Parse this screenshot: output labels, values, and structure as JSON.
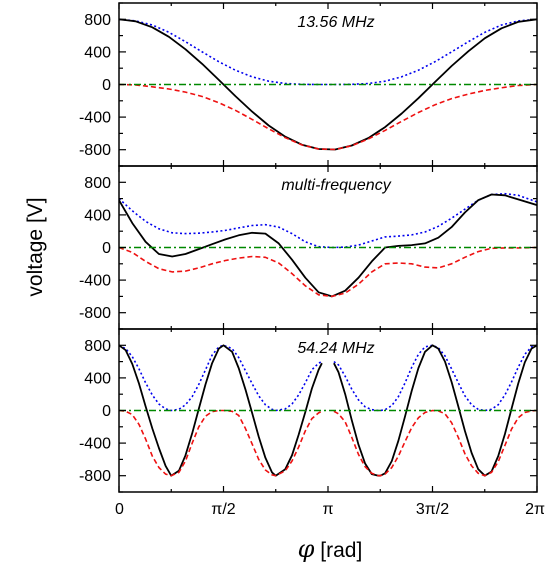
{
  "chart_data": {
    "type": "line",
    "ylabel": "voltage [V]",
    "xlabel": {
      "symbol": "φ",
      "unit": " [rad]"
    },
    "x_range": [
      0,
      6.283185
    ],
    "x_ticks": [
      {
        "value": 0,
        "label": "0"
      },
      {
        "value": 1.570796,
        "label": "π/2"
      },
      {
        "value": 3.141593,
        "label": "π"
      },
      {
        "value": 4.712389,
        "label": "3π/2"
      },
      {
        "value": 6.283185,
        "label": "2π"
      }
    ],
    "ylim": [
      -1000,
      1000
    ],
    "y_ticks": [
      800,
      400,
      0,
      -400,
      -800
    ],
    "series_style": {
      "s1": {
        "color": "#0000ee",
        "dash": "2,2.5",
        "width": 1.6
      },
      "s2": {
        "color": "#000000",
        "dash": "",
        "width": 1.8
      },
      "s3": {
        "color": "#ee1111",
        "dash": "5,3",
        "width": 1.6
      },
      "s4": {
        "color": "#008800",
        "dash": "7,3,2,3",
        "width": 1.6
      }
    },
    "panels": [
      {
        "title": "13.56 MHz",
        "series": [
          {
            "style": "s1",
            "x": [
              0,
              0.25,
              0.5,
              0.75,
              1.0,
              1.25,
              1.5,
              1.75,
              2.0,
              2.25,
              2.5,
              2.75,
              3.0,
              3.25,
              3.5,
              3.75,
              4.0,
              4.25,
              4.5,
              4.75,
              5.0,
              5.25,
              5.5,
              5.75,
              6.0,
              6.2832
            ],
            "y": [
              800,
              780,
              730,
              640,
              525,
              400,
              280,
              175,
              95,
              40,
              12,
              2,
              0,
              0,
              2,
              12,
              40,
              95,
              175,
              280,
              400,
              525,
              640,
              730,
              780,
              800
            ]
          },
          {
            "style": "s2",
            "x": [
              0,
              0.25,
              0.5,
              0.75,
              1.0,
              1.25,
              1.5,
              1.75,
              2.0,
              2.25,
              2.5,
              2.75,
              3.0,
              3.25,
              3.5,
              3.75,
              4.0,
              4.25,
              4.5,
              4.75,
              5.0,
              5.25,
              5.5,
              5.75,
              6.0,
              6.2832
            ],
            "y": [
              800,
              775,
              702,
              585,
              432,
              253,
              57,
              -142,
              -333,
              -503,
              -641,
              -739,
              -792,
              -798,
              -749,
              -656,
              -523,
              -356,
              -168,
              31,
              227,
              407,
              568,
              690,
              768,
              800
            ]
          },
          {
            "style": "s3",
            "x": [
              0,
              0.25,
              0.5,
              0.75,
              1.0,
              1.25,
              1.5,
              1.75,
              2.0,
              2.25,
              2.5,
              2.75,
              3.0,
              3.25,
              3.5,
              3.75,
              4.0,
              4.25,
              4.5,
              4.75,
              5.0,
              5.25,
              5.5,
              5.75,
              6.0,
              6.2832
            ],
            "y": [
              0,
              -5,
              -28,
              -55,
              -93,
              -147,
              -223,
              -317,
              -428,
              -543,
              -653,
              -741,
              -792,
              -798,
              -751,
              -668,
              -563,
              -451,
              -343,
              -249,
              -173,
              -118,
              -72,
              -40,
              -12,
              0
            ]
          },
          {
            "style": "s4",
            "x": [
              0,
              6.2832
            ],
            "y": [
              0,
              0
            ]
          }
        ]
      },
      {
        "title": "multi-frequency",
        "series": [
          {
            "style": "s1",
            "x": [
              0,
              0.2,
              0.4,
              0.6,
              0.8,
              1.0,
              1.2,
              1.4,
              1.6,
              1.8,
              2.0,
              2.2,
              2.4,
              2.6,
              2.8,
              3.0,
              3.2,
              3.4,
              3.6,
              3.8,
              4.0,
              4.2,
              4.4,
              4.6,
              4.8,
              5.0,
              5.2,
              5.4,
              5.6,
              5.8,
              6.0,
              6.2832
            ],
            "y": [
              600,
              450,
              320,
              230,
              180,
              170,
              175,
              190,
              210,
              240,
              270,
              280,
              250,
              170,
              70,
              10,
              0,
              5,
              30,
              80,
              130,
              140,
              155,
              190,
              260,
              360,
              470,
              580,
              650,
              660,
              640,
              560
            ]
          },
          {
            "style": "s2",
            "x": [
              0,
              0.2,
              0.4,
              0.6,
              0.8,
              1.0,
              1.2,
              1.4,
              1.6,
              1.8,
              2.0,
              2.2,
              2.4,
              2.6,
              2.8,
              3.0,
              3.2,
              3.4,
              3.6,
              3.8,
              4.0,
              4.2,
              4.4,
              4.6,
              4.8,
              5.0,
              5.2,
              5.4,
              5.6,
              5.8,
              6.0,
              6.2832
            ],
            "y": [
              580,
              300,
              70,
              -80,
              -110,
              -80,
              -20,
              40,
              100,
              150,
              180,
              170,
              50,
              -150,
              -370,
              -550,
              -600,
              -530,
              -370,
              -170,
              0,
              20,
              30,
              50,
              120,
              250,
              430,
              580,
              650,
              640,
              590,
              520
            ]
          },
          {
            "style": "s3",
            "x": [
              0,
              0.2,
              0.4,
              0.6,
              0.8,
              1.0,
              1.2,
              1.4,
              1.6,
              1.8,
              2.0,
              2.2,
              2.4,
              2.6,
              2.8,
              3.0,
              3.2,
              3.4,
              3.6,
              3.8,
              4.0,
              4.2,
              4.4,
              4.6,
              4.8,
              5.0,
              5.2,
              5.4,
              5.6,
              5.8,
              6.0,
              6.2832
            ],
            "y": [
              0,
              -60,
              -170,
              -260,
              -300,
              -290,
              -250,
              -200,
              -160,
              -130,
              -110,
              -120,
              -190,
              -320,
              -470,
              -580,
              -600,
              -560,
              -450,
              -300,
              -200,
              -190,
              -200,
              -240,
              -250,
              -200,
              -120,
              -50,
              -10,
              -5,
              -5,
              0
            ]
          },
          {
            "style": "s4",
            "x": [
              0,
              6.2832
            ],
            "y": [
              0,
              0
            ]
          }
        ]
      },
      {
        "title": "54.24 MHz",
        "series": [
          {
            "style": "s1",
            "x": [
              0,
              0.1,
              0.2,
              0.3,
              0.4,
              0.5,
              0.6,
              0.7,
              0.785,
              0.9,
              1.0,
              1.1,
              1.2,
              1.3,
              1.4,
              1.5,
              1.571,
              1.7,
              1.8,
              1.9,
              2.0,
              2.1,
              2.2,
              2.3,
              2.356,
              2.5,
              2.6,
              2.7,
              2.8,
              2.9,
              3.0,
              3.05
            ],
            "y": [
              800,
              760,
              660,
              510,
              340,
              190,
              80,
              20,
              0,
              15,
              70,
              170,
              320,
              500,
              680,
              780,
              800,
              760,
              650,
              490,
              330,
              180,
              70,
              15,
              0,
              20,
              80,
              190,
              340,
              500,
              580,
              600
            ]
          },
          {
            "style": "s2",
            "x": [
              0,
              0.1,
              0.2,
              0.3,
              0.4,
              0.5,
              0.6,
              0.7,
              0.785,
              0.9,
              1.0,
              1.1,
              1.2,
              1.3,
              1.4,
              1.5,
              1.571,
              1.7,
              1.8,
              1.9,
              2.0,
              2.1,
              2.2,
              2.3,
              2.356,
              2.5,
              2.6,
              2.7,
              2.8,
              2.9,
              3.0,
              3.05
            ],
            "y": [
              800,
              740,
              570,
              330,
              50,
              -220,
              -460,
              -680,
              -800,
              -740,
              -550,
              -280,
              20,
              320,
              580,
              760,
              800,
              720,
              520,
              260,
              -30,
              -320,
              -580,
              -760,
              -800,
              -720,
              -550,
              -300,
              -20,
              270,
              500,
              580
            ]
          },
          {
            "style": "s3",
            "x": [
              0,
              0.1,
              0.2,
              0.3,
              0.4,
              0.5,
              0.6,
              0.7,
              0.785,
              0.9,
              1.0,
              1.1,
              1.2,
              1.3,
              1.4,
              1.5,
              1.571,
              1.7,
              1.8,
              1.9,
              2.0,
              2.1,
              2.2,
              2.3,
              2.356,
              2.5,
              2.6,
              2.7,
              2.8,
              2.9,
              3.0,
              3.05
            ],
            "y": [
              0,
              -10,
              -50,
              -170,
              -350,
              -560,
              -700,
              -780,
              -800,
              -760,
              -620,
              -400,
              -200,
              -70,
              -15,
              0,
              0,
              -10,
              -60,
              -220,
              -410,
              -600,
              -730,
              -790,
              -800,
              -740,
              -620,
              -450,
              -250,
              -100,
              -30,
              -10
            ]
          },
          {
            "style": "s1",
            "x": [
              3.23,
              3.3,
              3.4,
              3.5,
              3.6,
              3.7,
              3.8,
              3.9,
              3.927,
              4.0,
              4.1,
              4.2,
              4.3,
              4.4,
              4.5,
              4.6,
              4.712,
              4.8,
              4.9,
              5.0,
              5.1,
              5.2,
              5.3,
              5.4,
              5.498,
              5.6,
              5.7,
              5.8,
              5.9,
              6.0,
              6.1,
              6.2,
              6.2832
            ],
            "y": [
              600,
              560,
              420,
              260,
              130,
              45,
              10,
              0,
              0,
              10,
              60,
              170,
              340,
              530,
              690,
              780,
              800,
              770,
              670,
              510,
              340,
              180,
              70,
              15,
              0,
              15,
              70,
              190,
              350,
              530,
              690,
              780,
              800
            ]
          },
          {
            "style": "s2",
            "x": [
              3.23,
              3.3,
              3.4,
              3.5,
              3.6,
              3.7,
              3.8,
              3.9,
              3.927,
              4.0,
              4.1,
              4.2,
              4.3,
              4.4,
              4.5,
              4.6,
              4.712,
              4.8,
              4.9,
              5.0,
              5.1,
              5.2,
              5.3,
              5.4,
              5.498,
              5.6,
              5.7,
              5.8,
              5.9,
              6.0,
              6.1,
              6.2,
              6.2832
            ],
            "y": [
              580,
              470,
              200,
              -120,
              -420,
              -650,
              -780,
              -800,
              -800,
              -770,
              -620,
              -370,
              -70,
              240,
              520,
              720,
              800,
              760,
              600,
              350,
              50,
              -250,
              -520,
              -720,
              -800,
              -750,
              -560,
              -290,
              20,
              330,
              590,
              760,
              800
            ]
          },
          {
            "style": "s3",
            "x": [
              3.23,
              3.3,
              3.4,
              3.5,
              3.6,
              3.7,
              3.8,
              3.9,
              3.927,
              4.0,
              4.1,
              4.2,
              4.3,
              4.4,
              4.5,
              4.6,
              4.712,
              4.8,
              4.9,
              5.0,
              5.1,
              5.2,
              5.3,
              5.4,
              5.498,
              5.6,
              5.7,
              5.8,
              5.9,
              6.0,
              6.1,
              6.2,
              6.2832
            ],
            "y": [
              -10,
              -40,
              -140,
              -330,
              -540,
              -690,
              -770,
              -800,
              -800,
              -780,
              -700,
              -560,
              -380,
              -210,
              -90,
              -25,
              0,
              -5,
              -40,
              -150,
              -330,
              -530,
              -680,
              -770,
              -800,
              -760,
              -630,
              -430,
              -230,
              -90,
              -25,
              -5,
              0
            ]
          },
          {
            "style": "s4",
            "x": [
              0,
              6.2832
            ],
            "y": [
              0,
              0
            ]
          }
        ]
      }
    ]
  }
}
